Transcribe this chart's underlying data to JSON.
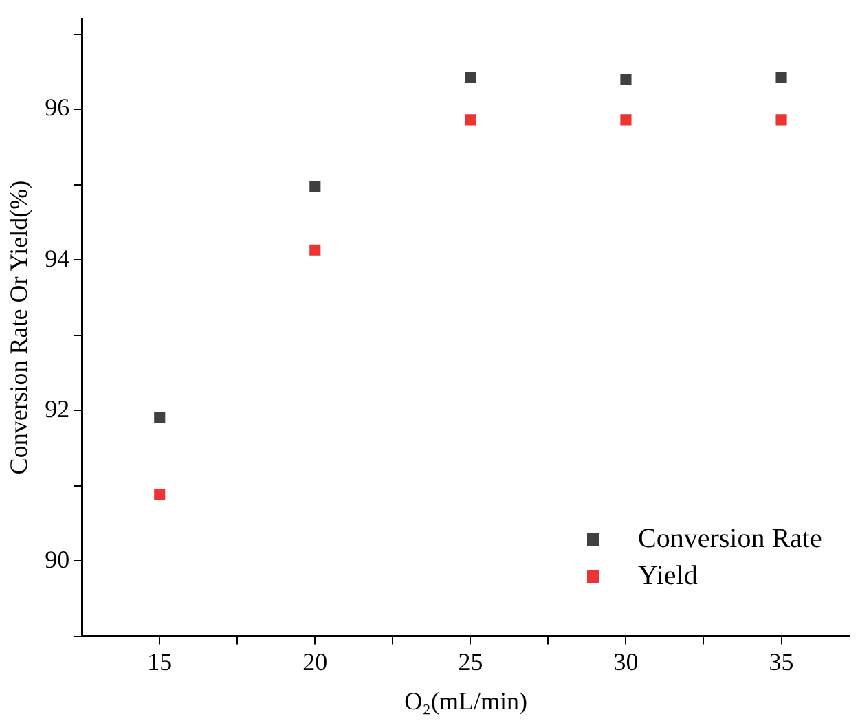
{
  "chart_data": {
    "type": "scatter",
    "xlabel": "O₂(mL/min)",
    "ylabel": "Conversion Rate Or Yield(%)",
    "x": [
      15,
      20,
      25,
      30,
      35
    ],
    "series": [
      {
        "name": "Conversion Rate",
        "color": "#404040",
        "values": [
          91.9,
          94.97,
          96.42,
          96.4,
          96.42
        ]
      },
      {
        "name": "Yield",
        "color": "#ee3333",
        "values": [
          90.88,
          94.13,
          95.86,
          95.86,
          95.86
        ]
      }
    ],
    "xlim": [
      12.5,
      37.2
    ],
    "ylim": [
      89,
      97.2
    ],
    "xticks": [
      15,
      {
        "value": 17.5,
        "label": null
      },
      20,
      {
        "value": 22.5,
        "label": null
      },
      25,
      {
        "value": 27.5,
        "label": null
      },
      30,
      {
        "value": 32.5,
        "label": null
      },
      35
    ],
    "yticks": [
      {
        "value": 89,
        "label": null
      },
      90,
      {
        "value": 91,
        "label": null
      },
      92,
      {
        "value": 93,
        "label": null
      },
      94,
      {
        "value": 95,
        "label": null
      },
      96,
      {
        "value": 97,
        "label": null
      }
    ],
    "grid": false,
    "legend": "bottom right",
    "marker": "square"
  }
}
